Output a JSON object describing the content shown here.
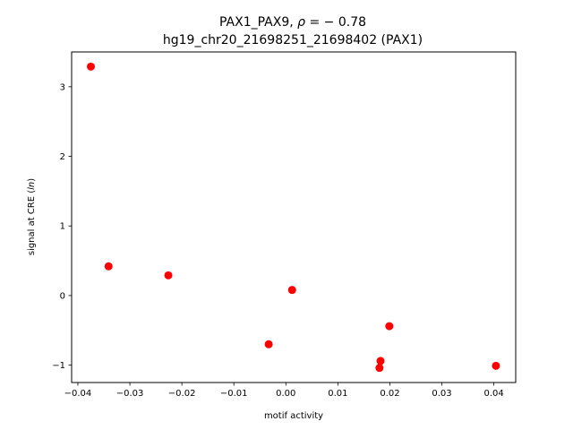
{
  "chart_data": {
    "type": "scatter",
    "title_line1_prefix": "PAX1_PAX9, ",
    "title_line1_rho": "ρ",
    "title_line1_suffix": " = − 0.78",
    "title_line2": "hg19_chr20_21698251_21698402 (PAX1)",
    "xlabel": "motif activity",
    "ylabel_prefix": "signal at CRE (",
    "ylabel_italic": "ln",
    "ylabel_suffix": ")",
    "xlim": [
      -0.0412,
      0.0442
    ],
    "ylim": [
      -1.25,
      3.5
    ],
    "x_ticks": [
      {
        "value": -0.04,
        "label": "−0.04"
      },
      {
        "value": -0.03,
        "label": "−0.03"
      },
      {
        "value": -0.02,
        "label": "−0.02"
      },
      {
        "value": -0.01,
        "label": "−0.01"
      },
      {
        "value": 0.0,
        "label": "0.00"
      },
      {
        "value": 0.01,
        "label": "0.01"
      },
      {
        "value": 0.02,
        "label": "0.02"
      },
      {
        "value": 0.03,
        "label": "0.03"
      },
      {
        "value": 0.04,
        "label": "0.04"
      }
    ],
    "y_ticks": [
      {
        "value": -1,
        "label": "−1"
      },
      {
        "value": 0,
        "label": "0"
      },
      {
        "value": 1,
        "label": "1"
      },
      {
        "value": 2,
        "label": "2"
      },
      {
        "value": 3,
        "label": "3"
      }
    ],
    "grid": false,
    "series": [
      {
        "color": "#ff0000",
        "points": [
          {
            "x": -0.0375,
            "y": 3.29
          },
          {
            "x": -0.0341,
            "y": 0.42
          },
          {
            "x": -0.0226,
            "y": 0.29
          },
          {
            "x": 0.0012,
            "y": 0.08
          },
          {
            "x": -0.0033,
            "y": -0.7
          },
          {
            "x": 0.0199,
            "y": -0.44
          },
          {
            "x": 0.0182,
            "y": -0.94
          },
          {
            "x": 0.018,
            "y": -1.04
          },
          {
            "x": 0.0404,
            "y": -1.01
          }
        ]
      }
    ]
  }
}
